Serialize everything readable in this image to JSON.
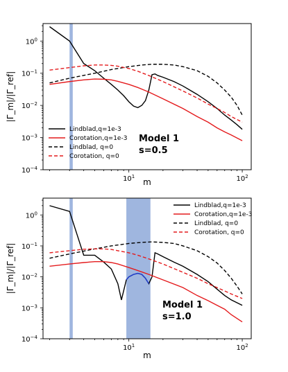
{
  "chart_data": [
    {
      "type": "line",
      "xlabel": "m",
      "ylabel": "|Γ_m|/|Γ_ref|",
      "xscale": "log",
      "yscale": "log",
      "xlim": [
        1.75,
        120
      ],
      "ylim": [
        0.0001,
        3.5
      ],
      "x_ticks": [
        {
          "value": 10,
          "label": "10^1"
        },
        {
          "value": 100,
          "label": "10^2"
        }
      ],
      "y_ticks": [
        {
          "value": 1,
          "label": "10^0"
        },
        {
          "value": 0.1,
          "label": "10^-1"
        },
        {
          "value": 0.01,
          "label": "10^-2"
        },
        {
          "value": 0.001,
          "label": "10^-3"
        },
        {
          "value": 0.0001,
          "label": "10^-4"
        }
      ],
      "legend_position": "lower-left",
      "annotation": [
        "Model 1",
        "s=0.5"
      ],
      "shaded_regions": [
        {
          "x": [
            3.0,
            3.2
          ],
          "color": "#9ab2dd"
        }
      ],
      "series": [
        {
          "name": "Lindblad,q=1e-3",
          "color": "#000000",
          "dash": "solid",
          "points": [
            [
              2,
              2.8
            ],
            [
              3,
              1.0
            ],
            [
              4,
              0.2
            ],
            [
              5,
              0.12
            ],
            [
              6,
              0.07
            ],
            [
              7,
              0.045
            ],
            [
              8,
              0.03
            ],
            [
              9,
              0.02
            ],
            [
              10,
              0.013
            ],
            [
              11,
              0.0095
            ],
            [
              12,
              0.0085
            ],
            [
              13,
              0.01
            ],
            [
              14,
              0.014
            ],
            [
              15,
              0.03
            ],
            [
              16,
              0.09
            ],
            [
              17,
              0.095
            ],
            [
              18,
              0.085
            ],
            [
              20,
              0.075
            ],
            [
              25,
              0.055
            ],
            [
              30,
              0.04
            ],
            [
              40,
              0.022
            ],
            [
              50,
              0.013
            ],
            [
              60,
              0.008
            ],
            [
              70,
              0.005
            ],
            [
              80,
              0.0035
            ],
            [
              90,
              0.0025
            ],
            [
              100,
              0.0018
            ]
          ]
        },
        {
          "name": "Corotation,q=1e-3",
          "color": "#e41a1c",
          "dash": "solid",
          "points": [
            [
              2,
              0.045
            ],
            [
              3,
              0.055
            ],
            [
              4,
              0.062
            ],
            [
              5,
              0.066
            ],
            [
              6,
              0.065
            ],
            [
              7,
              0.062
            ],
            [
              8,
              0.056
            ],
            [
              10,
              0.045
            ],
            [
              12,
              0.036
            ],
            [
              15,
              0.026
            ],
            [
              20,
              0.016
            ],
            [
              30,
              0.008
            ],
            [
              40,
              0.0045
            ],
            [
              50,
              0.003
            ],
            [
              60,
              0.002
            ],
            [
              70,
              0.0015
            ],
            [
              80,
              0.0012
            ],
            [
              100,
              0.0008
            ]
          ]
        },
        {
          "name": "Lindblad, q=0",
          "color": "#000000",
          "dash": "dashed",
          "points": [
            [
              2,
              0.05
            ],
            [
              3,
              0.07
            ],
            [
              5,
              0.1
            ],
            [
              7,
              0.13
            ],
            [
              10,
              0.16
            ],
            [
              13,
              0.18
            ],
            [
              16,
              0.19
            ],
            [
              20,
              0.19
            ],
            [
              25,
              0.18
            ],
            [
              30,
              0.16
            ],
            [
              40,
              0.12
            ],
            [
              50,
              0.08
            ],
            [
              60,
              0.05
            ],
            [
              70,
              0.03
            ],
            [
              80,
              0.018
            ],
            [
              90,
              0.01
            ],
            [
              100,
              0.005
            ]
          ]
        },
        {
          "name": "Corotation, q=0",
          "color": "#e41a1c",
          "dash": "dashed",
          "points": [
            [
              2,
              0.125
            ],
            [
              3,
              0.15
            ],
            [
              4,
              0.17
            ],
            [
              5,
              0.18
            ],
            [
              6,
              0.18
            ],
            [
              7,
              0.175
            ],
            [
              8,
              0.165
            ],
            [
              10,
              0.14
            ],
            [
              12,
              0.115
            ],
            [
              15,
              0.085
            ],
            [
              20,
              0.055
            ],
            [
              30,
              0.028
            ],
            [
              40,
              0.017
            ],
            [
              50,
              0.011
            ],
            [
              60,
              0.008
            ],
            [
              70,
              0.006
            ],
            [
              80,
              0.0045
            ],
            [
              100,
              0.003
            ]
          ]
        }
      ]
    },
    {
      "type": "line",
      "xlabel": "m",
      "ylabel": "|Γ_m|/|Γ_ref|",
      "xscale": "log",
      "yscale": "log",
      "xlim": [
        1.75,
        120
      ],
      "ylim": [
        0.0001,
        3.5
      ],
      "x_ticks": [
        {
          "value": 10,
          "label": "10^1"
        },
        {
          "value": 100,
          "label": "10^2"
        }
      ],
      "y_ticks": [
        {
          "value": 1,
          "label": "10^0"
        },
        {
          "value": 0.1,
          "label": "10^-1"
        },
        {
          "value": 0.01,
          "label": "10^-2"
        },
        {
          "value": 0.001,
          "label": "10^-3"
        },
        {
          "value": 0.0001,
          "label": "10^-4"
        }
      ],
      "legend_position": "upper-right",
      "annotation": [
        "Model 1",
        "s=1.0"
      ],
      "shaded_regions": [
        {
          "x": [
            3.0,
            3.2
          ],
          "color": "#9ab2dd"
        },
        {
          "x": [
            9.5,
            15.5
          ],
          "color": "#9ab2dd"
        }
      ],
      "series": [
        {
          "name": "Lindblad,q=1e-3",
          "color": "#000000",
          "dash": "solid",
          "points": [
            [
              2,
              2.0
            ],
            [
              3,
              1.3
            ],
            [
              4,
              0.05
            ],
            [
              5,
              0.05
            ],
            [
              6,
              0.03
            ],
            [
              7,
              0.018
            ],
            [
              8,
              0.006
            ],
            [
              8.6,
              0.0018
            ],
            [
              9.5,
              0.008
            ],
            [
              10,
              0.01
            ],
            [
              11,
              0.012
            ],
            [
              12,
              0.013
            ],
            [
              13,
              0.012
            ],
            [
              14,
              0.009
            ],
            [
              15,
              0.006
            ],
            [
              16,
              0.01
            ],
            [
              17,
              0.06
            ],
            [
              18,
              0.055
            ],
            [
              20,
              0.045
            ],
            [
              25,
              0.03
            ],
            [
              30,
              0.022
            ],
            [
              40,
              0.012
            ],
            [
              50,
              0.007
            ],
            [
              60,
              0.004
            ],
            [
              70,
              0.0025
            ],
            [
              80,
              0.0018
            ],
            [
              100,
              0.0012
            ]
          ]
        },
        {
          "name": "Corotation,q=1e-3",
          "color": "#e41a1c",
          "dash": "solid",
          "points": [
            [
              2,
              0.022
            ],
            [
              3,
              0.026
            ],
            [
              4,
              0.029
            ],
            [
              5,
              0.031
            ],
            [
              6,
              0.031
            ],
            [
              7,
              0.029
            ],
            [
              8,
              0.026
            ],
            [
              10,
              0.02
            ],
            [
              12,
              0.016
            ],
            [
              15,
              0.012
            ],
            [
              20,
              0.008
            ],
            [
              30,
              0.0045
            ],
            [
              40,
              0.0025
            ],
            [
              50,
              0.0017
            ],
            [
              60,
              0.0012
            ],
            [
              70,
              0.0009
            ],
            [
              80,
              0.0006
            ],
            [
              100,
              0.00035
            ]
          ]
        },
        {
          "name": "Lindblad, q=0",
          "color": "#000000",
          "dash": "dashed",
          "points": [
            [
              2,
              0.04
            ],
            [
              3,
              0.055
            ],
            [
              5,
              0.08
            ],
            [
              7,
              0.1
            ],
            [
              10,
              0.12
            ],
            [
              13,
              0.13
            ],
            [
              16,
              0.135
            ],
            [
              20,
              0.13
            ],
            [
              25,
              0.12
            ],
            [
              30,
              0.1
            ],
            [
              40,
              0.07
            ],
            [
              50,
              0.045
            ],
            [
              60,
              0.028
            ],
            [
              70,
              0.016
            ],
            [
              80,
              0.009
            ],
            [
              90,
              0.005
            ],
            [
              100,
              0.0028
            ]
          ]
        },
        {
          "name": "Corotation, q=0",
          "color": "#e41a1c",
          "dash": "dashed",
          "points": [
            [
              2,
              0.06
            ],
            [
              3,
              0.07
            ],
            [
              4,
              0.078
            ],
            [
              5,
              0.08
            ],
            [
              6,
              0.08
            ],
            [
              7,
              0.077
            ],
            [
              8,
              0.07
            ],
            [
              10,
              0.06
            ],
            [
              12,
              0.05
            ],
            [
              15,
              0.038
            ],
            [
              20,
              0.026
            ],
            [
              30,
              0.014
            ],
            [
              40,
              0.009
            ],
            [
              50,
              0.006
            ],
            [
              60,
              0.0045
            ],
            [
              70,
              0.0035
            ],
            [
              80,
              0.0028
            ],
            [
              100,
              0.002
            ]
          ]
        },
        {
          "name": "",
          "color": "#1f3ed8",
          "dash": "solid",
          "points": [
            [
              9.5,
              0.008
            ],
            [
              10,
              0.01
            ],
            [
              11,
              0.012
            ],
            [
              12,
              0.013
            ],
            [
              13,
              0.012
            ],
            [
              14,
              0.009
            ],
            [
              15,
              0.006
            ]
          ]
        }
      ]
    }
  ]
}
